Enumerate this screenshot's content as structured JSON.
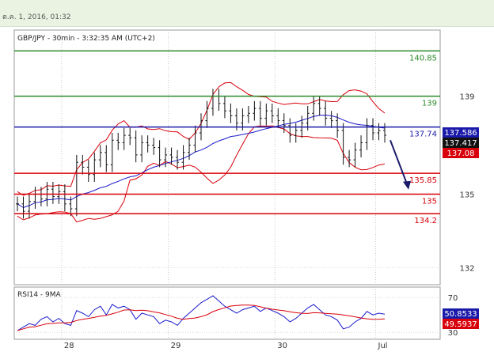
{
  "header": {
    "stamp": "ต.ค. 1, 2016, 01:32"
  },
  "chart_data": [
    {
      "type": "candlestick",
      "title": "GBP/JPY - 30min - 3:32:35 AM (UTC+2)",
      "y_ticks": [
        "139",
        "135",
        "132"
      ],
      "y_tick_values": [
        139,
        135,
        132
      ],
      "ylim": [
        131.3,
        141.7
      ],
      "x_labels": [
        "28",
        "29",
        "30",
        "Jul"
      ],
      "colors": {
        "bars": "#111111",
        "bollinger": "#d8000a",
        "ma": "#1a1acc"
      },
      "levels": [
        {
          "value": 140.85,
          "label": "140.85",
          "color": "#2a8a2a"
        },
        {
          "value": 139,
          "label": "139",
          "color": "#2a8a2a"
        },
        {
          "value": 137.74,
          "label": "137.74",
          "color": "#1a1aaa"
        },
        {
          "value": 135.85,
          "label": "135.85",
          "color": "#d8000a"
        },
        {
          "value": 135,
          "label": "135",
          "color": "#d8000a"
        },
        {
          "value": 134.2,
          "label": "134.2",
          "color": "#d8000a"
        }
      ],
      "price_boxes": [
        {
          "value": 137.586,
          "label": "137.586",
          "bg": "#1a1aaa"
        },
        {
          "value": 137.417,
          "label": "137.417",
          "bg": "#111111"
        },
        {
          "value": 137.08,
          "label": "137.08",
          "bg": "#d8000a"
        }
      ],
      "closes": [
        134.6,
        134.3,
        134.7,
        135.0,
        134.8,
        135.2,
        134.9,
        135.1,
        134.6,
        134.4,
        136.3,
        136.1,
        135.8,
        136.4,
        136.7,
        136.2,
        137.2,
        137.1,
        137.4,
        137.3,
        136.6,
        137.1,
        137.0,
        136.9,
        136.4,
        136.6,
        136.5,
        136.3,
        136.7,
        137.0,
        137.5,
        138.0,
        138.5,
        139.0,
        138.7,
        138.4,
        138.2,
        137.9,
        138.2,
        138.3,
        138.5,
        138.1,
        138.4,
        138.2,
        138.0,
        137.8,
        137.4,
        137.6,
        137.9,
        138.3,
        138.7,
        138.5,
        138.1,
        138.0,
        137.6,
        136.5,
        136.4,
        136.8,
        137.1,
        137.8,
        137.5,
        137.6,
        137.4
      ],
      "forecast_arrow": {
        "from": 137.2,
        "to": 135.25
      }
    },
    {
      "type": "line",
      "title": "RSI14 - 9MA",
      "y_ticks": [
        "70",
        "30"
      ],
      "y_tick_values": [
        70,
        30
      ],
      "ylim": [
        22,
        82
      ],
      "colors": {
        "rsi": "#1a1acc",
        "ma": "#d8000a"
      },
      "price_boxes": [
        {
          "value": 50.8533,
          "label": "50.8533",
          "bg": "#1a1aaa"
        },
        {
          "value": 49.5937,
          "label": "49.5937",
          "bg": "#d8000a"
        }
      ],
      "rsi": [
        32,
        36,
        40,
        38,
        45,
        48,
        42,
        46,
        40,
        38,
        55,
        52,
        48,
        56,
        60,
        50,
        62,
        58,
        60,
        56,
        45,
        52,
        50,
        48,
        40,
        44,
        42,
        38,
        46,
        52,
        58,
        64,
        68,
        72,
        66,
        60,
        56,
        52,
        56,
        58,
        60,
        54,
        58,
        55,
        52,
        48,
        42,
        46,
        52,
        58,
        62,
        56,
        50,
        48,
        44,
        34,
        36,
        42,
        46,
        54,
        50,
        52,
        50.85
      ]
    }
  ]
}
